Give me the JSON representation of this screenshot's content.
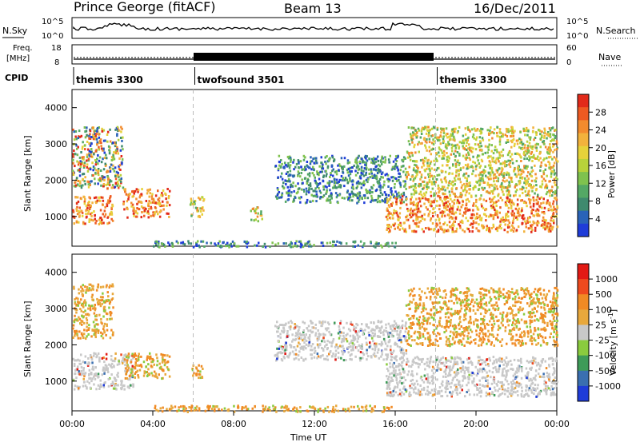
{
  "header": {
    "station": "Prince George (fitACF)",
    "beam": "Beam 13",
    "date": "16/Dec/2011"
  },
  "top_panel": {
    "left_label": "N.Sky",
    "right_label": "N.Search",
    "left_ticks": [
      "10^5",
      "10^0"
    ],
    "right_ticks": [
      "10^5",
      "10^0"
    ]
  },
  "freq_panel": {
    "left_label_line1": "Freq.",
    "left_label_line2": "[MHz]",
    "right_label": "Nave",
    "left_ticks": [
      "18",
      "8"
    ],
    "right_ticks": [
      "60",
      "0"
    ]
  },
  "cpid_panel": {
    "label": "CPID",
    "segments": [
      {
        "name": "themis 3300",
        "start_hour": 0,
        "end_hour": 6
      },
      {
        "name": "twofsound 3501",
        "start_hour": 6,
        "end_hour": 18
      },
      {
        "name": "themis 3300",
        "start_hour": 18,
        "end_hour": 24
      }
    ]
  },
  "chart_data": [
    {
      "type": "heatmap",
      "title": "Power",
      "ylabel": "Slant Range [km]",
      "ylim": [
        180,
        4500
      ],
      "y_ticks": [
        "1000",
        "2000",
        "3000",
        "4000"
      ],
      "colorbar": {
        "label": "Power [dB]",
        "ticks": [
          "4",
          "8",
          "12",
          "16",
          "20",
          "24",
          "28"
        ],
        "colors": [
          "#1f3cd8",
          "#2a63b8",
          "#3f8a6e",
          "#54a865",
          "#7fc24e",
          "#b8d23a",
          "#e6d23a",
          "#f2b23c",
          "#f28b2e",
          "#ee5a22",
          "#e22a1a"
        ]
      },
      "regions": [
        {
          "start_hour": 0.0,
          "end_hour": 2.0,
          "range_km": [
            800,
            1600
          ],
          "level": "high"
        },
        {
          "start_hour": 0.0,
          "end_hour": 2.5,
          "range_km": [
            1800,
            3500
          ],
          "level": "mixed"
        },
        {
          "start_hour": 2.5,
          "end_hour": 4.8,
          "range_km": [
            1000,
            1800
          ],
          "level": "high"
        },
        {
          "start_hour": 5.8,
          "end_hour": 6.5,
          "range_km": [
            1000,
            1600
          ],
          "level": "medium"
        },
        {
          "start_hour": 8.8,
          "end_hour": 9.4,
          "range_km": [
            900,
            1300
          ],
          "level": "medium"
        },
        {
          "start_hour": 10.0,
          "end_hour": 16.5,
          "range_km": [
            1400,
            2700
          ],
          "level": "low"
        },
        {
          "start_hour": 15.5,
          "end_hour": 24.0,
          "range_km": [
            600,
            1600
          ],
          "level": "high"
        },
        {
          "start_hour": 16.5,
          "end_hour": 24.0,
          "range_km": [
            1600,
            3500
          ],
          "level": "medium"
        },
        {
          "start_hour": 4.0,
          "end_hour": 16.0,
          "range_km": [
            180,
            350
          ],
          "level": "low"
        }
      ]
    },
    {
      "type": "heatmap",
      "title": "Velocity",
      "ylabel": "Slant Range [km]",
      "ylim": [
        180,
        4500
      ],
      "y_ticks": [
        "1000",
        "2000",
        "3000",
        "4000"
      ],
      "colorbar": {
        "label": "Velocity [m s^-1]",
        "ticks": [
          "1000",
          "500",
          "100",
          "25",
          "-25",
          "-100",
          "-500",
          "-1000"
        ],
        "colors": [
          "#1f3cd8",
          "#3a6fb0",
          "#3e9b58",
          "#8acb3e",
          "#c8c8c8",
          "#e8a83c",
          "#f08a24",
          "#ee4a1e",
          "#e21a14"
        ]
      },
      "regions": [
        {
          "start_hour": 0.0,
          "end_hour": 2.0,
          "range_km": [
            2200,
            3700
          ],
          "level": "orange"
        },
        {
          "start_hour": 0.0,
          "end_hour": 3.0,
          "range_km": [
            800,
            1800
          ],
          "level": "grey"
        },
        {
          "start_hour": 2.5,
          "end_hour": 4.8,
          "range_km": [
            1100,
            1800
          ],
          "level": "orange"
        },
        {
          "start_hour": 5.8,
          "end_hour": 6.5,
          "range_km": [
            1100,
            1500
          ],
          "level": "orange"
        },
        {
          "start_hour": 10.0,
          "end_hour": 16.5,
          "range_km": [
            1600,
            2700
          ],
          "level": "grey"
        },
        {
          "start_hour": 15.5,
          "end_hour": 24.0,
          "range_km": [
            600,
            1700
          ],
          "level": "grey"
        },
        {
          "start_hour": 16.5,
          "end_hour": 24.0,
          "range_km": [
            2000,
            3600
          ],
          "level": "orange"
        },
        {
          "start_hour": 4.0,
          "end_hour": 16.0,
          "range_km": [
            180,
            350
          ],
          "level": "orange"
        }
      ]
    }
  ],
  "x_axis": {
    "label": "Time UT",
    "ticks": [
      "00:00",
      "04:00",
      "08:00",
      "12:00",
      "16:00",
      "20:00",
      "00:00"
    ]
  }
}
